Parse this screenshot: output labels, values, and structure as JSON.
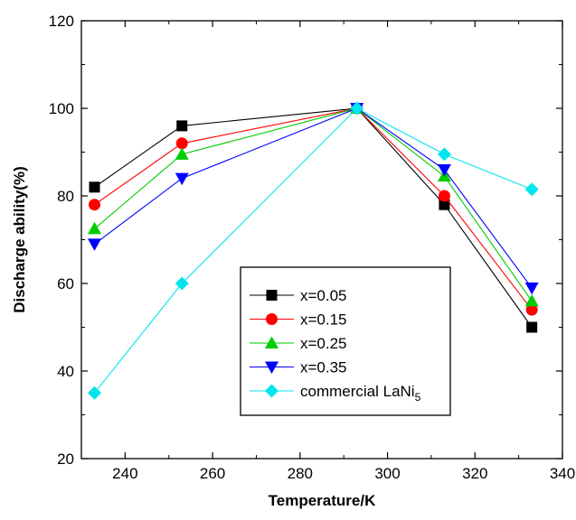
{
  "chart_data": {
    "type": "line",
    "xlabel": "Temperature/K",
    "ylabel": "Discharge ability(%)",
    "xlim": [
      230,
      340
    ],
    "ylim": [
      20,
      120
    ],
    "xticks": [
      240,
      260,
      280,
      300,
      320,
      340
    ],
    "yticks": [
      20,
      40,
      60,
      80,
      100,
      120
    ],
    "grid": false,
    "legend_position": "bottom-center",
    "x": [
      233,
      253,
      293,
      313,
      333
    ],
    "series": [
      {
        "name": "x=0.05",
        "values": [
          82,
          96,
          100,
          78,
          50
        ],
        "color": "#000000",
        "marker": "square"
      },
      {
        "name": "x=0.15",
        "values": [
          78,
          92,
          100,
          80,
          54
        ],
        "color": "#ff0000",
        "marker": "circle"
      },
      {
        "name": "x=0.25",
        "values": [
          72.5,
          89.5,
          100,
          84.5,
          56
        ],
        "color": "#00cc00",
        "marker": "triangle-up"
      },
      {
        "name": "x=0.35",
        "values": [
          69,
          84,
          100,
          86,
          59
        ],
        "color": "#0000ff",
        "marker": "triangle-down"
      },
      {
        "name": "commercial LaNi",
        "name_subscript": "5",
        "values": [
          35,
          60,
          100,
          89.5,
          81.5
        ],
        "color": "#00e5ee",
        "marker": "diamond"
      }
    ]
  }
}
